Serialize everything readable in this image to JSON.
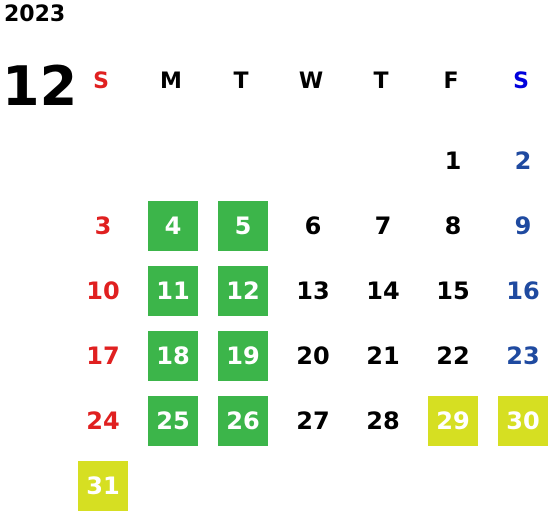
{
  "year": "2023",
  "month": "12",
  "weekdays": [
    "S",
    "M",
    "T",
    "W",
    "T",
    "F",
    "S"
  ],
  "colors": {
    "sunday": "#e02020",
    "saturday": "#1f4aa0",
    "workday_highlight": "#3cb54a",
    "holiday_highlight": "#d6df22"
  },
  "weeks": [
    [
      null,
      null,
      null,
      null,
      null,
      {
        "day": "1"
      },
      {
        "day": "2"
      }
    ],
    [
      {
        "day": "3"
      },
      {
        "day": "4",
        "mark": "green"
      },
      {
        "day": "5",
        "mark": "green"
      },
      {
        "day": "6"
      },
      {
        "day": "7"
      },
      {
        "day": "8"
      },
      {
        "day": "9"
      }
    ],
    [
      {
        "day": "10"
      },
      {
        "day": "11",
        "mark": "green"
      },
      {
        "day": "12",
        "mark": "green"
      },
      {
        "day": "13"
      },
      {
        "day": "14"
      },
      {
        "day": "15"
      },
      {
        "day": "16"
      }
    ],
    [
      {
        "day": "17"
      },
      {
        "day": "18",
        "mark": "green"
      },
      {
        "day": "19",
        "mark": "green"
      },
      {
        "day": "20"
      },
      {
        "day": "21"
      },
      {
        "day": "22"
      },
      {
        "day": "23"
      }
    ],
    [
      {
        "day": "24"
      },
      {
        "day": "25",
        "mark": "green"
      },
      {
        "day": "26",
        "mark": "green"
      },
      {
        "day": "27"
      },
      {
        "day": "28"
      },
      {
        "day": "29",
        "mark": "yellow"
      },
      {
        "day": "30",
        "mark": "yellow"
      }
    ],
    [
      {
        "day": "31",
        "mark": "yellow"
      },
      null,
      null,
      null,
      null,
      null,
      null
    ]
  ]
}
